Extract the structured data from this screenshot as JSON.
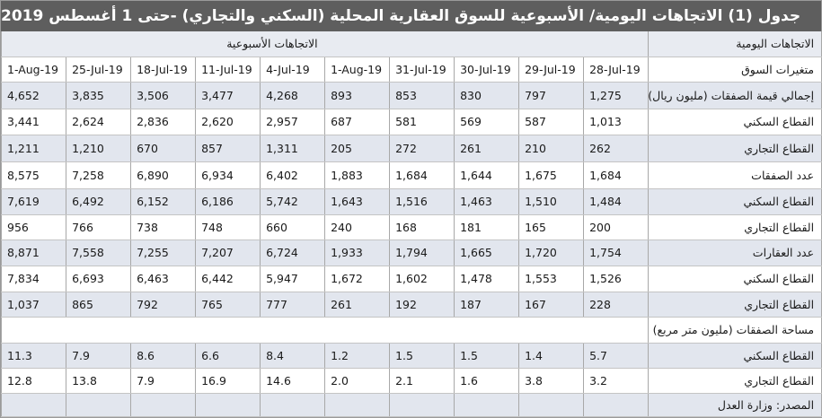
{
  "title": "جدول (1) الاتجاهات اليومية/ الأسبوعية للسوق العقارية المحلية (السكني والتجاري) -حتى 1 أغسطس 2019",
  "header": {
    "daily_label": "الاتجاهات اليومية",
    "weekly_label": "الاتجاهات الأسبوعية",
    "market_variables": "متغيرات السوق",
    "daily_dates": [
      "28-Jul-19",
      "29-Jul-19",
      "30-Jul-19",
      "31-Jul-19",
      "1-Aug-19"
    ],
    "weekly_dates": [
      "4-Jul-19",
      "11-Jul-19",
      "18-Jul-19",
      "25-Jul-19",
      "1-Aug-19"
    ]
  },
  "rows": [
    {
      "label": "إجمالي قيمة الصفقات (مليون ريال)",
      "values": [
        "1,275",
        "797",
        "830",
        "853",
        "893",
        "4,268",
        "3,477",
        "3,506",
        "3,835",
        "4,652"
      ]
    },
    {
      "label": "القطاع السكني",
      "values": [
        "1,013",
        "587",
        "569",
        "581",
        "687",
        "2,957",
        "2,620",
        "2,836",
        "2,624",
        "3,441"
      ]
    },
    {
      "label": "القطاع التجاري",
      "values": [
        "262",
        "210",
        "261",
        "272",
        "205",
        "1,311",
        "857",
        "670",
        "1,210",
        "1,211"
      ]
    },
    {
      "label": "عدد الصفقات",
      "values": [
        "1,684",
        "1,675",
        "1,644",
        "1,684",
        "1,883",
        "6,402",
        "6,934",
        "6,890",
        "7,258",
        "8,575"
      ]
    },
    {
      "label": "القطاع السكني",
      "values": [
        "1,484",
        "1,510",
        "1,463",
        "1,516",
        "1,643",
        "5,742",
        "6,186",
        "6,152",
        "6,492",
        "7,619"
      ]
    },
    {
      "label": "القطاع التجاري",
      "values": [
        "200",
        "165",
        "181",
        "168",
        "240",
        "660",
        "748",
        "738",
        "766",
        "956"
      ]
    },
    {
      "label": "عدد العقارات",
      "values": [
        "1,754",
        "1,720",
        "1,665",
        "1,794",
        "1,933",
        "6,724",
        "7,207",
        "7,255",
        "7,558",
        "8,871"
      ]
    },
    {
      "label": "القطاع السكني",
      "values": [
        "1,526",
        "1,553",
        "1,478",
        "1,602",
        "1,672",
        "5,947",
        "6,442",
        "6,463",
        "6,693",
        "7,834"
      ]
    },
    {
      "label": "القطاع التجاري",
      "values": [
        "228",
        "167",
        "187",
        "192",
        "261",
        "777",
        "765",
        "792",
        "865",
        "1,037"
      ]
    }
  ],
  "area_section": {
    "label": "مساحة الصفقات (مليون متر مربع)",
    "rows": [
      {
        "label": "القطاع السكني",
        "values": [
          "5.7",
          "1.4",
          "1.5",
          "1.5",
          "1.2",
          "8.4",
          "6.6",
          "8.6",
          "7.9",
          "11.3"
        ]
      },
      {
        "label": "القطاع التجاري",
        "values": [
          "3.2",
          "3.8",
          "1.6",
          "2.1",
          "2.0",
          "14.6",
          "16.9",
          "7.9",
          "13.8",
          "12.8"
        ]
      }
    ]
  },
  "source": "المصدر: وزارة العدل",
  "colors": {
    "title_bg": "#5e5e5e",
    "shade_row": "#e2e6ee",
    "grid": "#a8a8a8"
  }
}
